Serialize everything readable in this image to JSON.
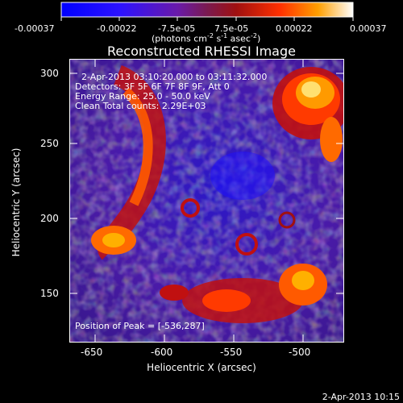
{
  "colorbar": {
    "labels": [
      "-0.00037",
      "-0.00022",
      "-7.5e-05",
      "7.5e-05",
      "0.00022",
      "0.00037"
    ],
    "units_prefix": "(photons cm",
    "units_sup1": "-2",
    "units_mid": " s",
    "units_sup2": "-1",
    "units_mid2": " asec",
    "units_sup3": "-2",
    "units_suffix": ")"
  },
  "title": "Reconstructed RHESSI Image",
  "info": {
    "time_range": "2-Apr-2013 03:10:20.000 to 03:11:32.000",
    "detectors": "Detectors: 3F 5F 6F 7F 8F 9F, Att 0",
    "energy_range": "Energy Range: 25.0 - 50.0 keV",
    "clean": "Clean    Total counts: 2.29E+03",
    "peak_position": "Position of Peak = [-536,287]"
  },
  "axes": {
    "xlabel": "Heliocentric X (arcsec)",
    "ylabel": "Heliocentric Y (arcsec)",
    "xticks": [
      "-650",
      "-600",
      "-550",
      "-500"
    ],
    "yticks": [
      "150",
      "200",
      "250",
      "300"
    ]
  },
  "footer": {
    "timestamp": "2-Apr-2013 10:15"
  }
}
